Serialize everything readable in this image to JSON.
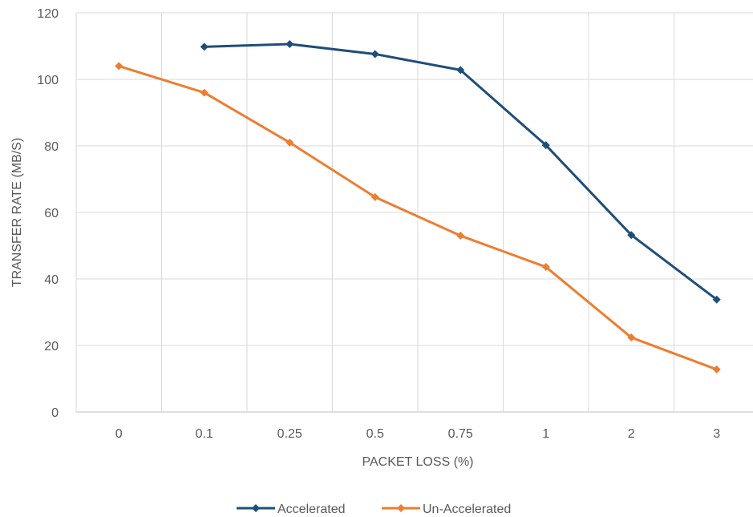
{
  "chart_data": {
    "type": "line",
    "categories": [
      "0",
      "0.1",
      "0.25",
      "0.5",
      "0.75",
      "1",
      "2",
      "3"
    ],
    "series": [
      {
        "name": "Accelerated",
        "color": "#1f4e79",
        "values": [
          null,
          109.8,
          110.6,
          107.6,
          102.8,
          80.2,
          53.2,
          33.8
        ]
      },
      {
        "name": "Un-Accelerated",
        "color": "#ed7d31",
        "values": [
          104.0,
          96.0,
          81.0,
          64.6,
          53.0,
          43.6,
          22.4,
          12.8
        ]
      }
    ],
    "xlabel": "PACKET LOSS (%)",
    "ylabel": "TRANSFER RATE (MB/S)",
    "ylim": [
      0,
      120
    ],
    "yticks": [
      0,
      20,
      40,
      60,
      80,
      100,
      120
    ],
    "grid": true,
    "legend_position": "bottom"
  }
}
